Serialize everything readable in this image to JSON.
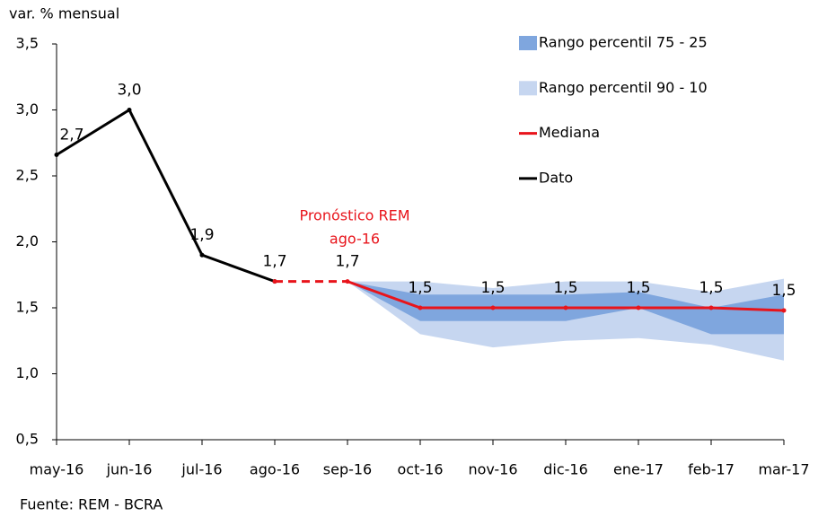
{
  "chart_data": {
    "type": "line",
    "y_label": "var. % mensual",
    "source": "Fuente: REM - BCRA",
    "annotation": [
      "Pronóstico REM",
      "ago-16"
    ],
    "categories": [
      "may-16",
      "jun-16",
      "jul-16",
      "ago-16",
      "sep-16",
      "oct-16",
      "nov-16",
      "dic-16",
      "ene-17",
      "feb-17",
      "mar-17"
    ],
    "ylim": [
      0.5,
      3.5
    ],
    "yticks": [
      {
        "value": 0.5,
        "label": "0,5"
      },
      {
        "value": 1.0,
        "label": "1,0"
      },
      {
        "value": 1.5,
        "label": "1,5"
      },
      {
        "value": 2.0,
        "label": "2,0"
      },
      {
        "value": 2.5,
        "label": "2,5"
      },
      {
        "value": 3.0,
        "label": "3,0"
      },
      {
        "value": 3.5,
        "label": "3,5"
      }
    ],
    "bands": [
      {
        "name": "Rango percentil 90 - 10",
        "color": "#c6d6f0",
        "high": [
          null,
          null,
          null,
          null,
          1.7,
          1.7,
          1.65,
          1.7,
          1.7,
          1.62,
          1.72
        ],
        "low": [
          null,
          null,
          null,
          null,
          1.7,
          1.3,
          1.2,
          1.25,
          1.27,
          1.22,
          1.1
        ]
      },
      {
        "name": "Rango percentil 75 - 25",
        "color": "#7fa6de",
        "high": [
          null,
          null,
          null,
          null,
          1.7,
          1.6,
          1.6,
          1.6,
          1.62,
          1.5,
          1.6
        ],
        "low": [
          null,
          null,
          null,
          null,
          1.7,
          1.4,
          1.4,
          1.4,
          1.5,
          1.3,
          1.3
        ]
      }
    ],
    "series": [
      {
        "name": "Mediana",
        "color": "#e8141b",
        "dash_first_segment": true,
        "values": [
          null,
          null,
          null,
          1.7,
          1.7,
          1.5,
          1.5,
          1.5,
          1.5,
          1.5,
          1.48
        ],
        "value_labels": [
          null,
          null,
          null,
          null,
          "1,7",
          "1,5",
          "1,5",
          "1,5",
          "1,5",
          "1,5",
          "1,5"
        ]
      },
      {
        "name": "Dato",
        "color": "#000000",
        "values": [
          2.66,
          3.0,
          1.9,
          1.7,
          null,
          null,
          null,
          null,
          null,
          null,
          null
        ],
        "value_labels": [
          "2,7",
          "3,0",
          "1,9",
          "1,7",
          null,
          null,
          null,
          null,
          null,
          null,
          null
        ]
      }
    ]
  }
}
